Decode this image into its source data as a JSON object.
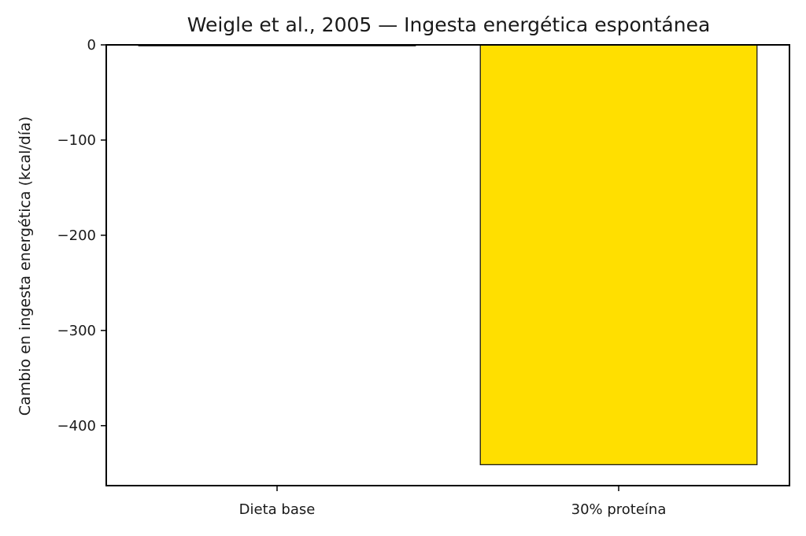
{
  "chart_data": {
    "type": "bar",
    "title": "Weigle et al., 2005 — Ingesta energética espontánea",
    "xlabel": "",
    "ylabel": "Cambio en ingesta energética (kcal/día)",
    "categories": [
      "Dieta base",
      "30% proteína"
    ],
    "values": [
      0,
      -441
    ],
    "ylim": [
      -463,
      0
    ],
    "yticks": [
      0,
      -100,
      -200,
      -300,
      -400
    ],
    "ytick_labels": [
      "0",
      "−100",
      "−200",
      "−300",
      "−400"
    ],
    "grid": false,
    "legend": "none",
    "colors": {
      "bars": [
        "#ffffff",
        "#ffdf00"
      ],
      "edge": "#1a1a1a",
      "axis": "#000000"
    }
  }
}
